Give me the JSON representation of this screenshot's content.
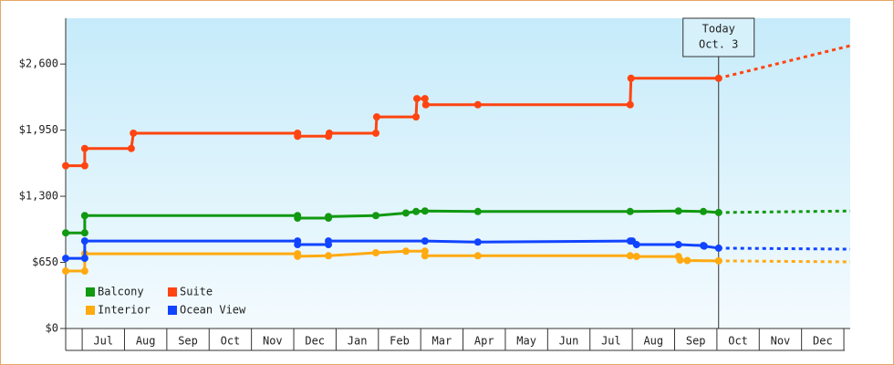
{
  "chart_data": {
    "type": "line",
    "categories": [
      "Jul",
      "Aug",
      "Sep",
      "Oct",
      "Nov",
      "Dec",
      "Jan",
      "Feb",
      "Mar",
      "Apr",
      "May",
      "Jun",
      "Jul",
      "Aug",
      "Sep",
      "Oct",
      "Nov",
      "Dec"
    ],
    "xlim": [
      -0.39,
      18.15
    ],
    "ylim": [
      0,
      3050
    ],
    "yticks": [
      {
        "value": 0,
        "label": "$0"
      },
      {
        "value": 650,
        "label": "$650"
      },
      {
        "value": 1300,
        "label": "$1,300"
      },
      {
        "value": 1950,
        "label": "$1,950"
      },
      {
        "value": 2600,
        "label": "$2,600"
      }
    ],
    "legend": "lower left",
    "series": [
      {
        "name": "Balcony",
        "color": "#119911",
        "x": [
          -0.39,
          0.06,
          0.06,
          5.09,
          5.09,
          5.82,
          5.82,
          6.94,
          7.65,
          7.89,
          8.1,
          9.35,
          12.95,
          14.09,
          14.68,
          15.04
        ],
        "values": [
          940,
          940,
          1110,
          1110,
          1085,
          1085,
          1100,
          1110,
          1135,
          1150,
          1155,
          1150,
          1150,
          1155,
          1150,
          1140
        ],
        "forecast": {
          "x": [
            15.04,
            18.15
          ],
          "values": [
            1140,
            1155
          ]
        }
      },
      {
        "name": "Suite",
        "color": "#ff4411",
        "x": [
          -0.39,
          0.06,
          0.06,
          1.16,
          1.21,
          5.09,
          5.09,
          5.82,
          5.84,
          6.94,
          6.96,
          7.89,
          7.91,
          8.1,
          8.12,
          9.35,
          12.95,
          12.97,
          15.04
        ],
        "values": [
          1600,
          1600,
          1770,
          1770,
          1920,
          1920,
          1890,
          1890,
          1920,
          1920,
          2080,
          2080,
          2260,
          2260,
          2200,
          2200,
          2200,
          2460,
          2460
        ],
        "forecast": {
          "x": [
            15.04,
            18.15
          ],
          "values": [
            2460,
            2780
          ]
        }
      },
      {
        "name": "Interior",
        "color": "#ffaa11",
        "x": [
          -0.39,
          0.06,
          0.06,
          5.09,
          5.09,
          5.82,
          6.94,
          7.65,
          8.1,
          8.1,
          9.35,
          12.95,
          13.1,
          14.09,
          14.13,
          14.3,
          15.04
        ],
        "values": [
          565,
          565,
          735,
          735,
          710,
          715,
          745,
          760,
          760,
          715,
          715,
          715,
          708,
          708,
          672,
          668,
          665
        ],
        "forecast": {
          "x": [
            15.04,
            18.15
          ],
          "values": [
            665,
            655
          ]
        }
      },
      {
        "name": "Ocean View",
        "color": "#1144ff",
        "x": [
          -0.39,
          0.06,
          0.06,
          5.09,
          5.09,
          5.82,
          5.82,
          8.1,
          9.35,
          12.95,
          13.0,
          13.1,
          14.09,
          14.68,
          14.7,
          15.04
        ],
        "values": [
          690,
          690,
          860,
          860,
          825,
          825,
          860,
          860,
          850,
          860,
          860,
          825,
          825,
          815,
          810,
          790
        ],
        "forecast": {
          "x": [
            15.04,
            18.15
          ],
          "values": [
            790,
            780
          ]
        }
      }
    ],
    "today_marker": {
      "x": 15.04,
      "label_lines": [
        "Today",
        "Oct. 3"
      ]
    }
  }
}
